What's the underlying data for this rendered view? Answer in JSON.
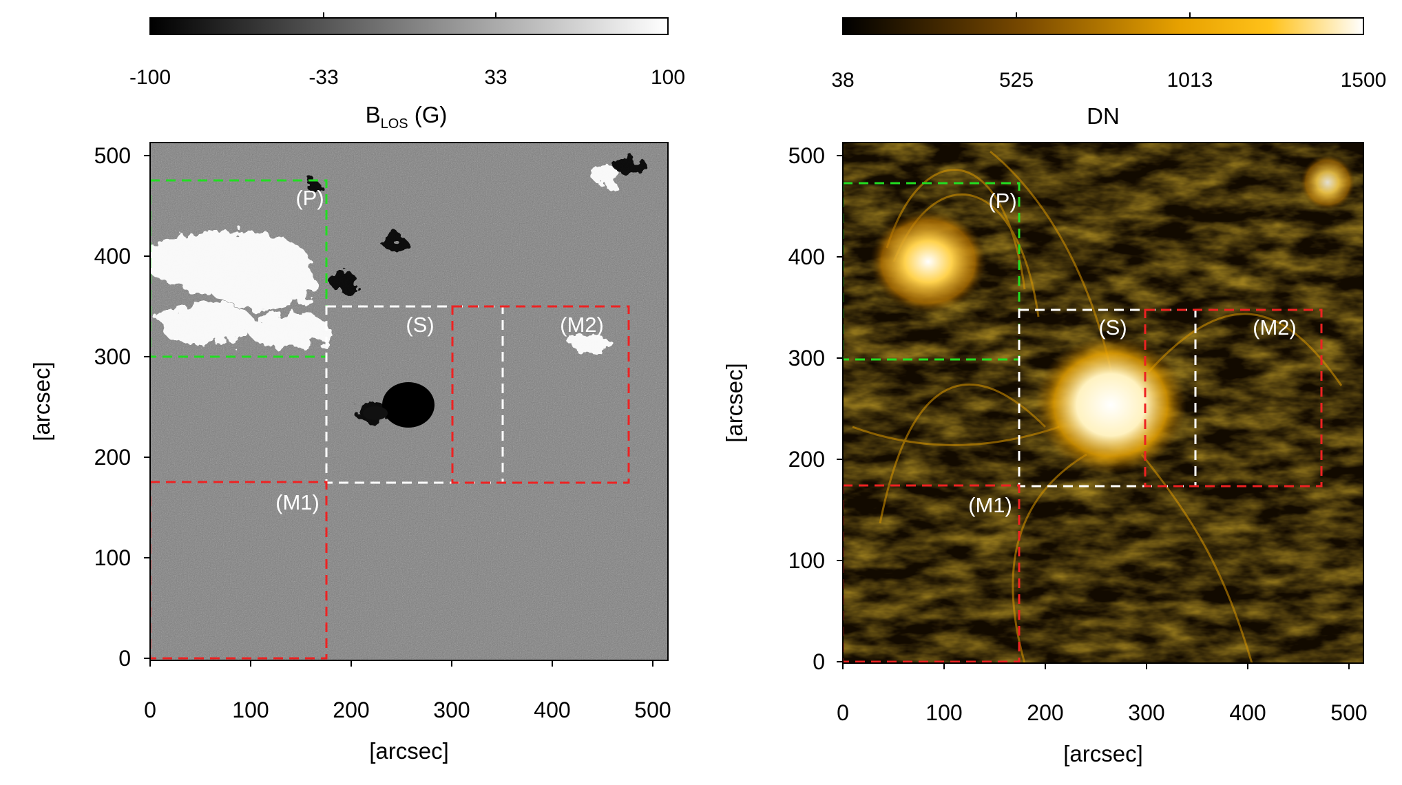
{
  "panels": {
    "left": {
      "colorbar": {
        "ticks": [
          "-100",
          "-33",
          "33",
          "100"
        ],
        "label_main": "B",
        "label_sub": "LOS",
        "label_unit": " (G)",
        "colors": [
          "#000000",
          "#ffffff"
        ]
      },
      "x_axis": {
        "ticks": [
          "0",
          "100",
          "200",
          "300",
          "400",
          "500"
        ],
        "title": "[arcsec]"
      },
      "y_axis": {
        "ticks": [
          "0",
          "100",
          "200",
          "300",
          "400",
          "500"
        ],
        "title": "[arcsec]"
      },
      "image_kind": "line-of-sight magnetogram (grayscale)",
      "regions": [
        {
          "label": "(P)",
          "color": "#22dd22"
        },
        {
          "label": "(S)",
          "color": "#ffffff"
        },
        {
          "label": "(M1)",
          "color": "#ee2222"
        },
        {
          "label": "(M2)",
          "color": "#ee2222"
        }
      ]
    },
    "right": {
      "colorbar": {
        "ticks": [
          "38",
          "525",
          "1013",
          "1500"
        ],
        "label": "DN",
        "colors": [
          "#000000",
          "#7a4a00",
          "#e8a200",
          "#ffc21a",
          "#ffffff"
        ]
      },
      "x_axis": {
        "ticks": [
          "0",
          "100",
          "200",
          "300",
          "400",
          "500"
        ],
        "title": "[arcsec]"
      },
      "y_axis": {
        "ticks": [
          "0",
          "100",
          "200",
          "300",
          "400",
          "500"
        ],
        "title": "[arcsec]"
      },
      "image_kind": "EUV coronal image (gold colormap)",
      "regions": [
        {
          "label": "(P)",
          "color": "#22dd22"
        },
        {
          "label": "(S)",
          "color": "#ffffff"
        },
        {
          "label": "(M1)",
          "color": "#ee2222"
        },
        {
          "label": "(M2)",
          "color": "#ee2222"
        }
      ]
    }
  }
}
